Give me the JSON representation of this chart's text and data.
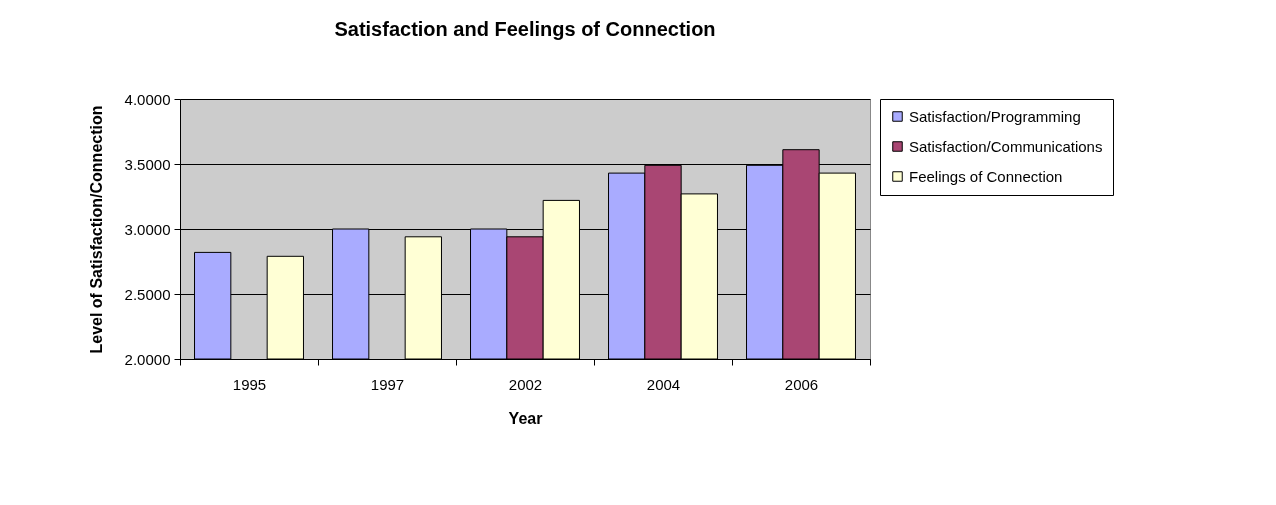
{
  "chart_data": {
    "type": "bar",
    "title": "Satisfaction and Feelings of Connection",
    "xlabel": "Year",
    "ylabel": "Level of Satisfaction/Connection",
    "categories": [
      "1995",
      "1997",
      "2002",
      "2004",
      "2006"
    ],
    "series": [
      {
        "name": "Satisfaction/Programming",
        "color": "#a9abff",
        "values": [
          2.82,
          3.0,
          3.0,
          3.43,
          3.49
        ]
      },
      {
        "name": "Satisfaction/Communications",
        "color": "#a94673",
        "values": [
          null,
          null,
          2.94,
          3.49,
          3.61
        ]
      },
      {
        "name": "Feelings of Connection",
        "color": "#ffffd5",
        "values": [
          2.79,
          2.94,
          3.22,
          3.27,
          3.43
        ]
      }
    ],
    "ylim": [
      2,
      4
    ],
    "yticks": [
      {
        "value": 2,
        "label": "2.0000"
      },
      {
        "value": 2.5,
        "label": "2.5000"
      },
      {
        "value": 3,
        "label": "3.0000"
      },
      {
        "value": 3.5,
        "label": "3.5000"
      },
      {
        "value": 4,
        "label": "4.0000"
      }
    ],
    "grid": "y",
    "legend": "right"
  }
}
